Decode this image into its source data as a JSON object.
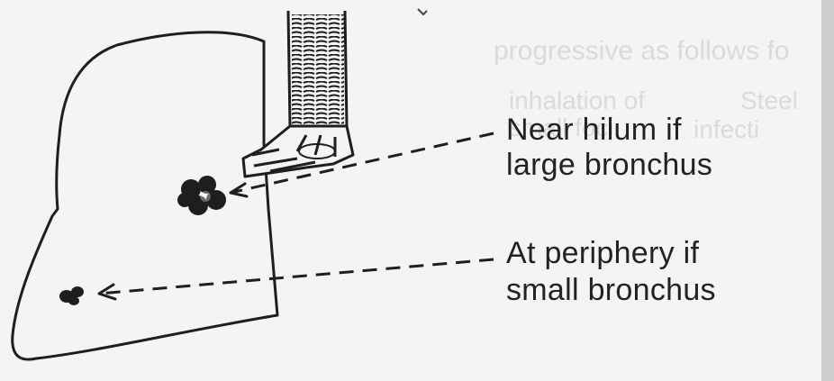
{
  "labels": {
    "hilum_line1": "Near hilum if",
    "hilum_line2": "large bronchus",
    "periphery_line1": "At periphery if",
    "periphery_line2": "small bronchus"
  },
  "bleed_through": {
    "line1": "progressive as follows fo",
    "line2": "inhalation of",
    "line3": "small foci",
    "line4": "Steel",
    "line5": "infecti"
  },
  "colors": {
    "ink": "#1e1e1e",
    "paper": "#f4f4f2",
    "right_edge": "#cfcfcf"
  },
  "icons": {
    "large_lesion": "tumor-cluster-icon",
    "small_lesion": "tumor-nodule-icon"
  }
}
